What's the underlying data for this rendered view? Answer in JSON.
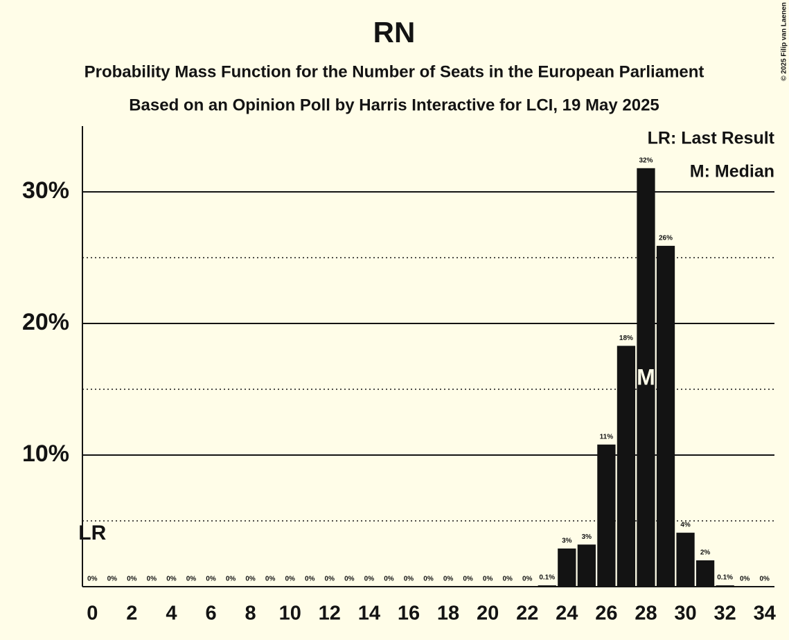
{
  "chart_data": {
    "type": "bar",
    "title": "RN",
    "subtitle": "Probability Mass Function for the Number of Seats in the European Parliament",
    "subtitle2": "Based on an Opinion Poll by Harris Interactive for LCI, 19 May 2025",
    "copyright": "© 2025 Filip van Laenen",
    "categories": [
      "0",
      null,
      "2",
      null,
      "4",
      null,
      "6",
      null,
      "8",
      null,
      "10",
      null,
      "12",
      null,
      "14",
      null,
      "16",
      null,
      "18",
      null,
      "20",
      null,
      "22",
      null,
      "24",
      null,
      "26",
      null,
      "28",
      null,
      "30",
      null,
      "32",
      null,
      "34"
    ],
    "values": [
      0,
      0,
      0,
      0,
      0,
      0,
      0,
      0,
      0,
      0,
      0,
      0,
      0,
      0,
      0,
      0,
      0,
      0,
      0,
      0,
      0,
      0,
      0,
      0.1,
      2.9,
      3.2,
      10.8,
      18.3,
      31.8,
      25.9,
      4.1,
      2.0,
      0.1,
      0,
      0
    ],
    "value_labels": [
      "0%",
      "0%",
      "0%",
      "0%",
      "0%",
      "0%",
      "0%",
      "0%",
      "0%",
      "0%",
      "0%",
      "0%",
      "0%",
      "0%",
      "0%",
      "0%",
      "0%",
      "0%",
      "0%",
      "0%",
      "0%",
      "0%",
      "0%",
      "0.1%",
      "3%",
      "3%",
      "11%",
      "18%",
      "32%",
      "26%",
      "4%",
      "2%",
      "0.1%",
      "0%",
      "0%"
    ],
    "color": "#131313",
    "ylim": [
      0,
      35
    ],
    "yticks": [
      {
        "value": 10,
        "label": "10%"
      },
      {
        "value": 20,
        "label": "20%"
      },
      {
        "value": 30,
        "label": "30%"
      }
    ],
    "minor_grid": [
      5,
      15,
      25
    ],
    "grid": true,
    "last_result": {
      "text": "LR",
      "index": 0
    },
    "median": {
      "text": "M",
      "index": 28
    },
    "legend": [
      "LR: Last Result",
      "M: Median"
    ]
  }
}
